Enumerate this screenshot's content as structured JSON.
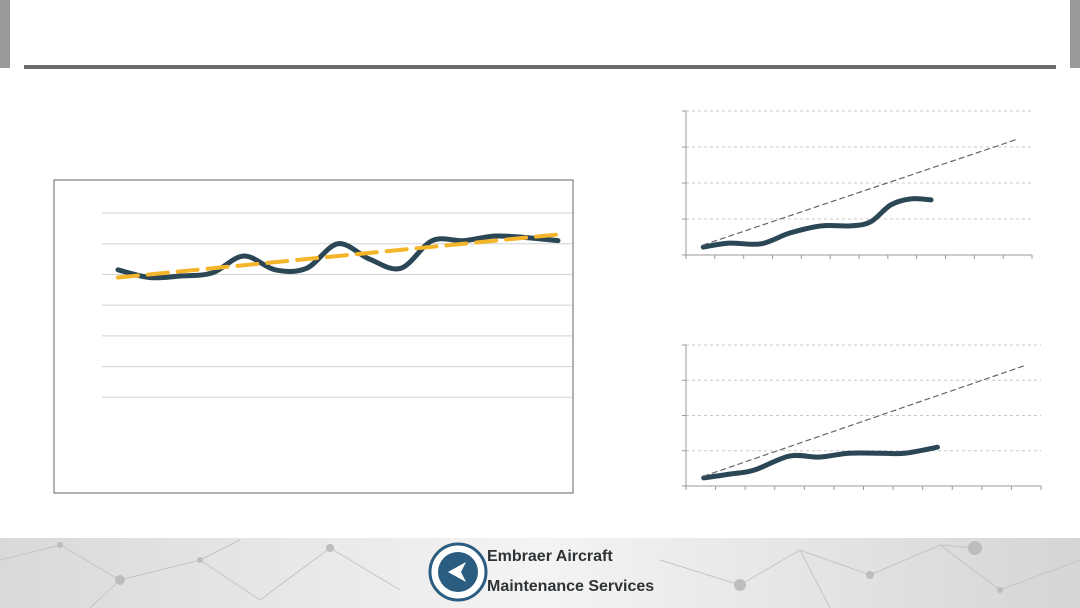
{
  "footer": {
    "brand": [
      "Embraer Aircraft",
      "Maintenance Services"
    ]
  },
  "chart_data": [
    {
      "type": "line",
      "xlim": [
        0,
        14
      ],
      "ylim": [
        0,
        7
      ],
      "yticks": [
        1,
        2,
        3,
        4,
        5,
        6,
        7
      ],
      "grid": true,
      "x": [
        0,
        1,
        2,
        3,
        4,
        5,
        6,
        7,
        8,
        9,
        10,
        11,
        12,
        13,
        14
      ],
      "series": [
        {
          "color": "#2b4756",
          "style": "solid",
          "x": [
            0,
            1,
            2,
            3,
            4,
            5,
            6,
            7,
            8,
            9,
            10,
            11,
            12,
            13,
            14
          ],
          "values": [
            5.15,
            4.9,
            4.95,
            5.05,
            5.6,
            5.15,
            5.2,
            6.0,
            5.5,
            5.2,
            6.1,
            6.1,
            6.25,
            6.2,
            6.1
          ]
        },
        {
          "color": "#f5b52a",
          "style": "dashed",
          "x": [
            0,
            14
          ],
          "values": [
            4.9,
            6.3
          ]
        }
      ]
    },
    {
      "type": "line",
      "xlim": [
        0,
        12
      ],
      "ylim": [
        0,
        4
      ],
      "yticks": [
        0,
        1,
        2,
        3,
        4
      ],
      "xticks": [
        0,
        1,
        2,
        3,
        4,
        5,
        6,
        7,
        8,
        9,
        10,
        11,
        12
      ],
      "grid": true,
      "series": [
        {
          "color": "#2b4756",
          "style": "solid",
          "x": [
            0.6,
            1.5,
            2.6,
            3.6,
            4.7,
            5.7,
            6.4,
            7.1,
            7.8,
            8.5
          ],
          "values": [
            0.22,
            0.33,
            0.31,
            0.61,
            0.81,
            0.81,
            0.92,
            1.39,
            1.56,
            1.53
          ]
        },
        {
          "color": "#666666",
          "style": "dashed",
          "x": [
            0.6,
            11.5
          ],
          "values": [
            0.28,
            3.22
          ]
        }
      ]
    },
    {
      "type": "line",
      "xlim": [
        0,
        12
      ],
      "ylim": [
        0,
        4
      ],
      "yticks": [
        0,
        1,
        2,
        3,
        4
      ],
      "xticks": [
        0,
        1,
        2,
        3,
        4,
        5,
        6,
        7,
        8,
        9,
        10,
        11,
        12
      ],
      "grid": true,
      "series": [
        {
          "color": "#2b4756",
          "style": "solid",
          "x": [
            0.6,
            1.5,
            2.3,
            3.5,
            4.5,
            5.5,
            6.6,
            7.4,
            8.5
          ],
          "values": [
            0.23,
            0.34,
            0.45,
            0.85,
            0.82,
            0.93,
            0.93,
            0.93,
            1.1
          ]
        },
        {
          "color": "#666666",
          "style": "dashed",
          "x": [
            0.6,
            11.5
          ],
          "values": [
            0.28,
            3.43
          ]
        }
      ]
    }
  ]
}
